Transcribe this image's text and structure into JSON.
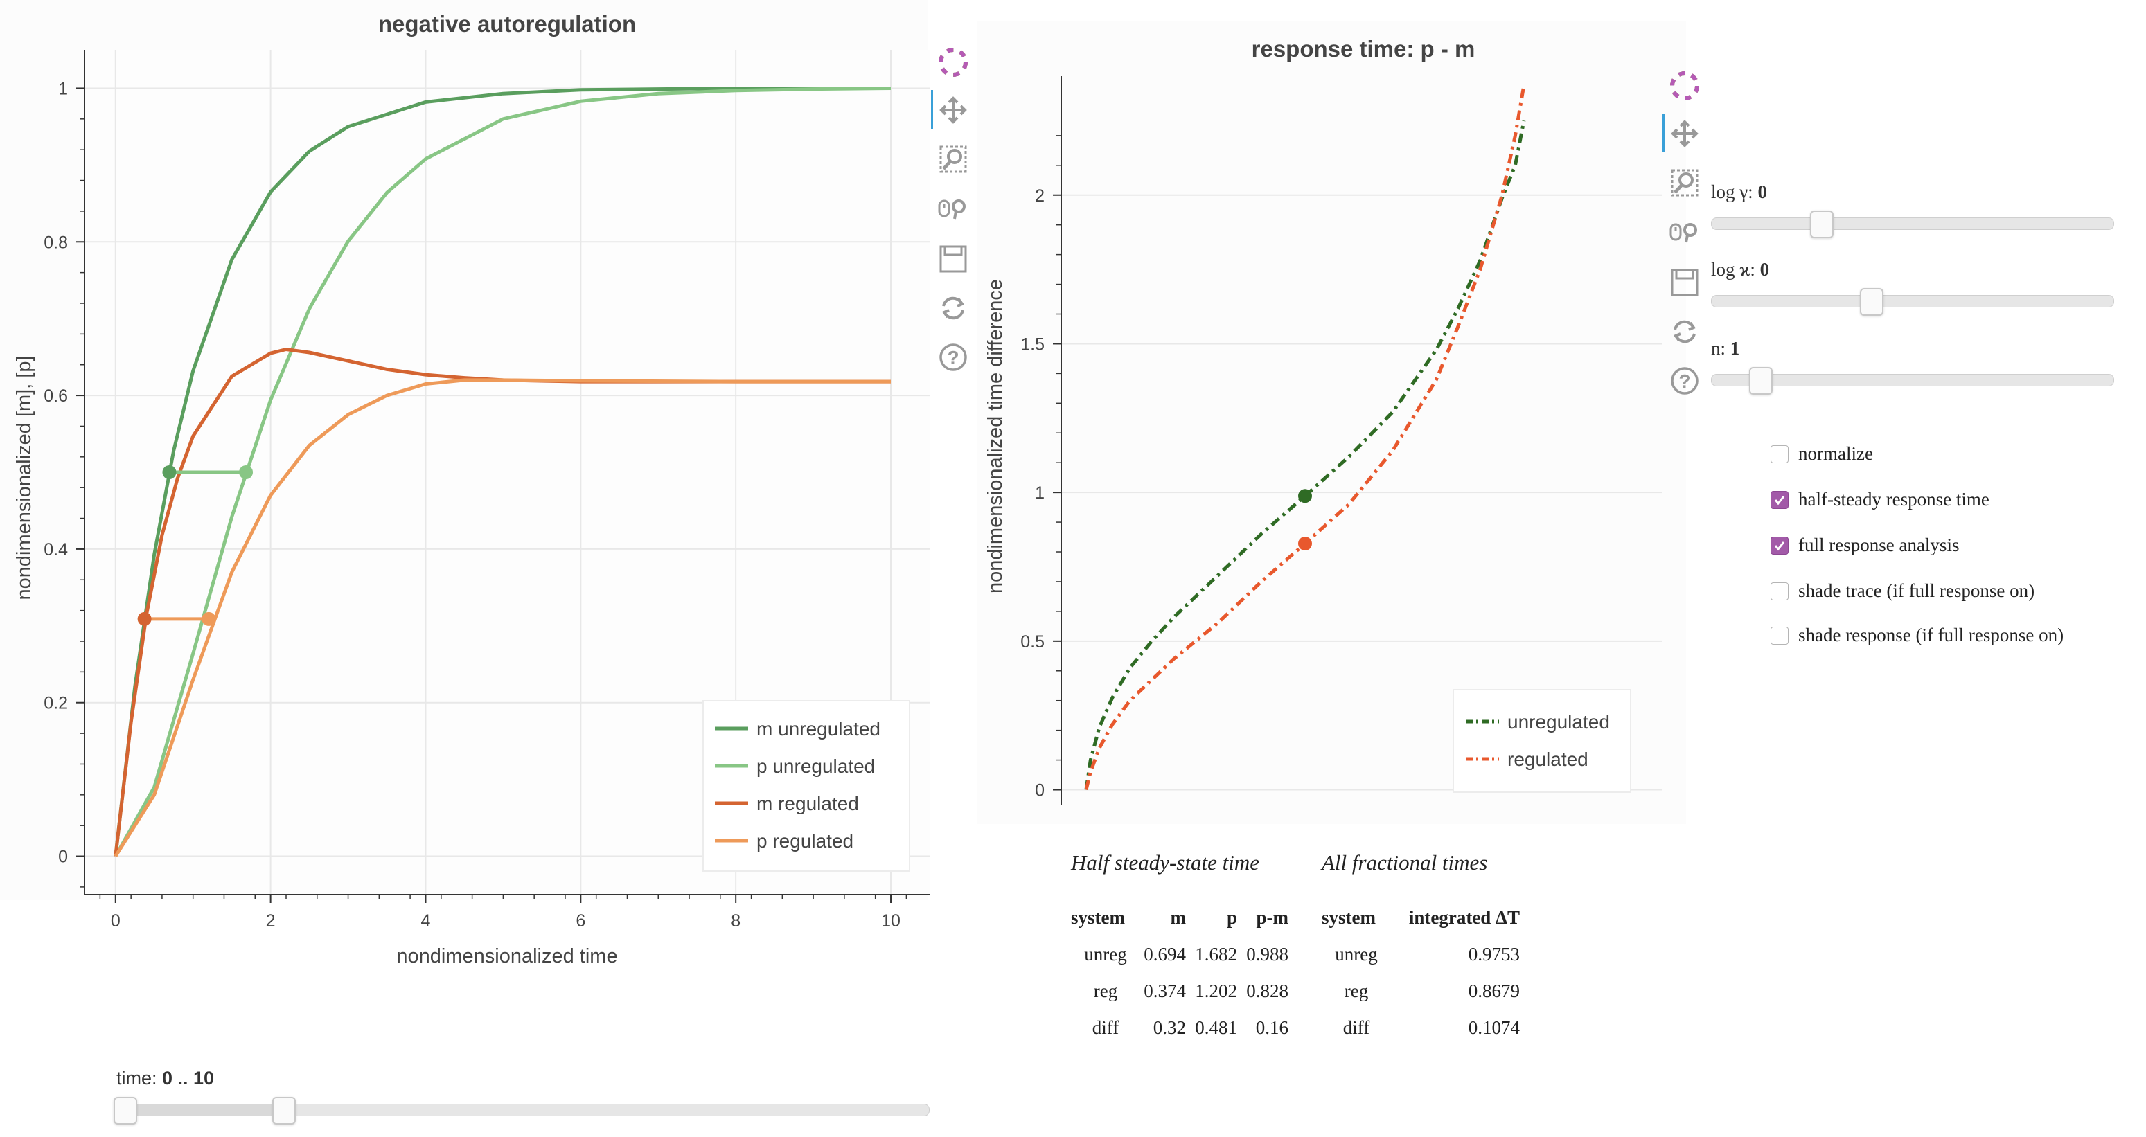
{
  "left_plot": {
    "title": "negative autoregulation",
    "xlabel": "nondimensionalized time",
    "ylabel": "nondimensionalized [m], [p]",
    "x_ticks": [
      "0",
      "2",
      "4",
      "6",
      "8",
      "10"
    ],
    "y_ticks": [
      "0",
      "0.2",
      "0.4",
      "0.6",
      "0.8",
      "1"
    ],
    "legend": [
      "m unregulated",
      "p unregulated",
      "m regulated",
      "p regulated"
    ]
  },
  "right_plot": {
    "title": "response time: p - m",
    "ylabel": "nondimensionalized time difference",
    "y_ticks": [
      "0",
      "0.5",
      "1",
      "1.5",
      "2"
    ],
    "legend": [
      "unregulated",
      "regulated"
    ]
  },
  "chart_data": [
    {
      "type": "line",
      "title": "negative autoregulation",
      "xlabel": "nondimensionalized time",
      "ylabel": "nondimensionalized [m], [p]",
      "xlim": [
        -0.4,
        10.5
      ],
      "ylim": [
        -0.05,
        1.05
      ],
      "legend_position": "bottom-right",
      "series": [
        {
          "name": "m unregulated",
          "color": "#5a9e5e",
          "x": [
            0,
            0.25,
            0.5,
            0.75,
            1,
            1.5,
            2,
            2.5,
            3,
            4,
            5,
            6,
            7,
            8,
            9,
            10
          ],
          "y": [
            0,
            0.221,
            0.393,
            0.528,
            0.632,
            0.777,
            0.865,
            0.918,
            0.95,
            0.982,
            0.993,
            0.998,
            0.999,
            1,
            1,
            1
          ]
        },
        {
          "name": "p unregulated",
          "color": "#88c685",
          "x": [
            0,
            0.5,
            1,
            1.5,
            2,
            2.5,
            3,
            3.5,
            4,
            5,
            6,
            7,
            8,
            9,
            10
          ],
          "y": [
            0,
            0.09,
            0.264,
            0.442,
            0.594,
            0.713,
            0.801,
            0.864,
            0.908,
            0.96,
            0.983,
            0.993,
            0.997,
            0.999,
            1
          ]
        },
        {
          "name": "m regulated",
          "color": "#d46431",
          "x": [
            0,
            0.2,
            0.4,
            0.6,
            0.8,
            1,
            1.5,
            2,
            2.2,
            2.5,
            3,
            3.5,
            4,
            4.5,
            5,
            6,
            7,
            8,
            10
          ],
          "y": [
            0,
            0.175,
            0.315,
            0.418,
            0.492,
            0.547,
            0.625,
            0.655,
            0.66,
            0.656,
            0.645,
            0.634,
            0.627,
            0.623,
            0.62,
            0.618,
            0.618,
            0.618,
            0.618
          ]
        },
        {
          "name": "p regulated",
          "color": "#ee9a59",
          "x": [
            0,
            0.5,
            1,
            1.5,
            2,
            2.5,
            3,
            3.5,
            4,
            4.5,
            5,
            6,
            8,
            10
          ],
          "y": [
            0,
            0.08,
            0.23,
            0.37,
            0.47,
            0.535,
            0.575,
            0.6,
            0.615,
            0.62,
            0.62,
            0.619,
            0.618,
            0.618
          ]
        }
      ],
      "markers": [
        {
          "series": "unregulated",
          "y": 0.5,
          "m_time": 0.694,
          "p_time": 1.682
        },
        {
          "series": "regulated",
          "y": 0.309,
          "m_time": 0.374,
          "p_time": 1.202
        }
      ]
    },
    {
      "type": "line",
      "title": "response time: p - m",
      "xlabel": "",
      "ylabel": "nondimensionalized time difference",
      "xlim": [
        0,
        1
      ],
      "ylim": [
        -0.05,
        2.4
      ],
      "legend_position": "bottom-right",
      "series": [
        {
          "name": "unregulated",
          "color": "#2f6b24",
          "style": "dashdot",
          "x": [
            0,
            0.01,
            0.03,
            0.06,
            0.1,
            0.15,
            0.2,
            0.3,
            0.4,
            0.5,
            0.6,
            0.7,
            0.8,
            0.85,
            0.9,
            0.95,
            0.98,
            1
          ],
          "y": [
            0,
            0.1,
            0.21,
            0.31,
            0.41,
            0.5,
            0.58,
            0.72,
            0.86,
            0.988,
            1.12,
            1.27,
            1.48,
            1.62,
            1.78,
            1.99,
            2.1,
            2.25
          ]
        },
        {
          "name": "regulated",
          "color": "#e8582d",
          "style": "dashdot",
          "x": [
            0,
            0.01,
            0.03,
            0.06,
            0.1,
            0.15,
            0.2,
            0.3,
            0.4,
            0.5,
            0.6,
            0.7,
            0.8,
            0.85,
            0.9,
            0.95,
            0.98,
            1
          ],
          "y": [
            0,
            0.06,
            0.14,
            0.22,
            0.3,
            0.37,
            0.44,
            0.56,
            0.7,
            0.828,
            0.96,
            1.14,
            1.38,
            1.56,
            1.75,
            2.0,
            2.2,
            2.37
          ]
        }
      ],
      "markers": [
        {
          "series": "unregulated",
          "x": 0.5,
          "y": 0.988
        },
        {
          "series": "regulated",
          "x": 0.5,
          "y": 0.828
        }
      ]
    }
  ],
  "time_slider": {
    "label": "time: ",
    "value": "0 .. 10",
    "start_fraction": 0,
    "end_fraction": 0.2
  },
  "param_sliders": [
    {
      "label": "log γ: ",
      "value": "0",
      "fraction": 0.26
    },
    {
      "label": "log ϰ: ",
      "value": "0",
      "fraction": 0.39
    },
    {
      "label": "n: ",
      "value": "1",
      "fraction": 0.1
    }
  ],
  "checkboxes": [
    {
      "label": "normalize",
      "checked": false
    },
    {
      "label": "half-steady response time",
      "checked": true
    },
    {
      "label": "full response analysis",
      "checked": true
    },
    {
      "label": "shade trace (if full response on)",
      "checked": false
    },
    {
      "label": "shade response (if full response on)",
      "checked": false
    }
  ],
  "tables": {
    "half_title": "Half steady-state time",
    "all_title": "All fractional times",
    "half_headers": [
      "system",
      "m",
      "p",
      "p-m"
    ],
    "half_rows": [
      [
        "unreg",
        "0.694",
        "1.682",
        "0.988"
      ],
      [
        "reg",
        "0.374",
        "1.202",
        "0.828"
      ],
      [
        "diff",
        "0.32",
        "0.481",
        "0.16"
      ]
    ],
    "all_headers": [
      "system",
      "integrated ΔT"
    ],
    "all_rows": [
      [
        "unreg",
        "0.9753"
      ],
      [
        "reg",
        "0.8679"
      ],
      [
        "diff",
        "0.1074"
      ]
    ]
  },
  "toolbar_tools": [
    "bokeh-logo-icon",
    "pan-icon",
    "box-zoom-icon",
    "wheel-zoom-icon",
    "save-icon",
    "reset-icon",
    "help-icon"
  ]
}
